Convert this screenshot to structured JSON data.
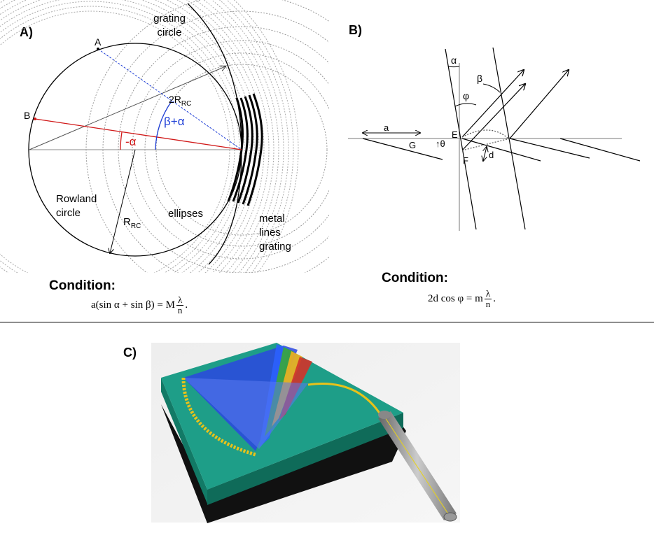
{
  "panel_a": {
    "label": "A)",
    "grating_circle": "grating circle",
    "point_a": "A",
    "point_b": "B",
    "radius_2r": "2R",
    "radius_2r_sub": "RC",
    "beta_alpha": "β+α",
    "neg_alpha": "-α",
    "rowland_circle": "Rowland circle",
    "radius_r": "R",
    "radius_r_sub": "RC",
    "ellipses": "ellipses",
    "metal_lines_grating": "metal lines grating",
    "condition_label": "Condition:",
    "formula": {
      "left": "a(sin α + sin β) = M",
      "num": "λ",
      "den": "n",
      "end": "."
    }
  },
  "panel_b": {
    "label": "B)",
    "alpha": "α",
    "beta": "β",
    "phi": "φ",
    "a": "a",
    "g": "G",
    "theta": "θ",
    "e": "E",
    "f": "F",
    "d": "d",
    "condition_label": "Condition:",
    "formula": {
      "left": "2d cos φ = m",
      "num": "λ",
      "den": "n",
      "end": "."
    }
  },
  "panel_c": {
    "label": "C)"
  },
  "colors": {
    "blue_line": "#1f3fd6",
    "red_line": "#d01818",
    "board_top": "#1e9e88",
    "board_side": "#127a66",
    "board_base": "#111111",
    "teeth": "#e8c21a"
  }
}
